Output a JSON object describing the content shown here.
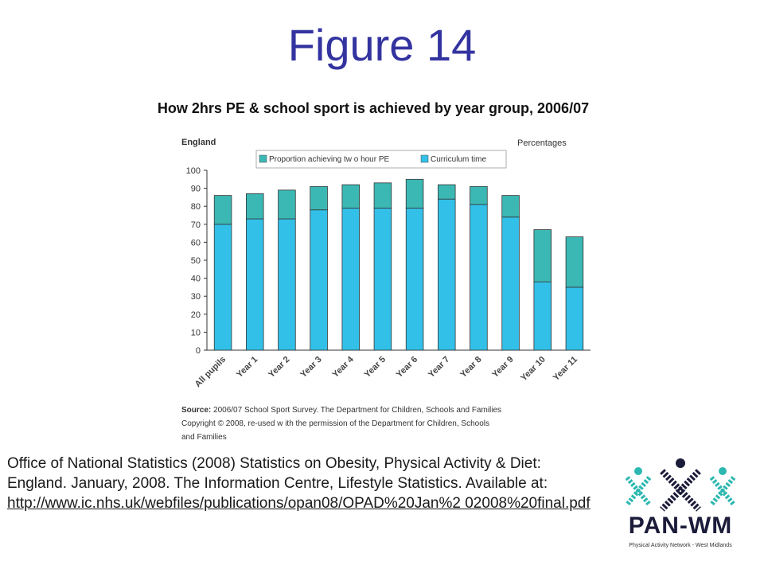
{
  "title": "Figure 14",
  "chart_caption": "How 2hrs PE & school sport is achieved by year group, 2006/07",
  "chart_data": {
    "type": "bar",
    "stacked": true,
    "region_label": "England",
    "units_label": "Percentages",
    "categories": [
      "All pupils",
      "Year 1",
      "Year 2",
      "Year 3",
      "Year 4",
      "Year 5",
      "Year 6",
      "Year 7",
      "Year 8",
      "Year 9",
      "Year 10",
      "Year 11"
    ],
    "series": [
      {
        "name": "Curriculum time",
        "values": [
          70,
          73,
          73,
          78,
          79,
          79,
          79,
          84,
          81,
          74,
          38,
          35
        ],
        "color": "#33c0e8"
      },
      {
        "name": "Proportion achieving two hour PE",
        "values": [
          16,
          14,
          16,
          13,
          13,
          14,
          16,
          8,
          10,
          12,
          29,
          28
        ],
        "color": "#3cb8b4"
      }
    ],
    "legend_labels": [
      "Proportion achieving tw o hour PE",
      "Curriculum time"
    ],
    "ylim": [
      0,
      100
    ],
    "yticks": [
      0,
      10,
      20,
      30,
      40,
      50,
      60,
      70,
      80,
      90,
      100
    ],
    "legend_position": "top",
    "source_label": "Source:",
    "source_text": " 2006/07 School Sport Survey. The Department for Children, Schools and Families",
    "copyright_lines": [
      "Copyright © 2008, re-used w ith the permission of the Department for Children, Schools",
      "and Families"
    ]
  },
  "citation": {
    "text": "Office of National Statistics (2008) Statistics on Obesity, Physical Activity & Diet: England.  January, 2008.  The Information Centre, Lifestyle Statistics. Available at:",
    "link": "http://www.ic.nhs.uk/webfiles/publications/opan08/OPAD%20Jan%2 02008%20final.pdf"
  },
  "logo": {
    "name": "PAN-WM",
    "tagline": "Physical Activity Network - West Midlands"
  }
}
